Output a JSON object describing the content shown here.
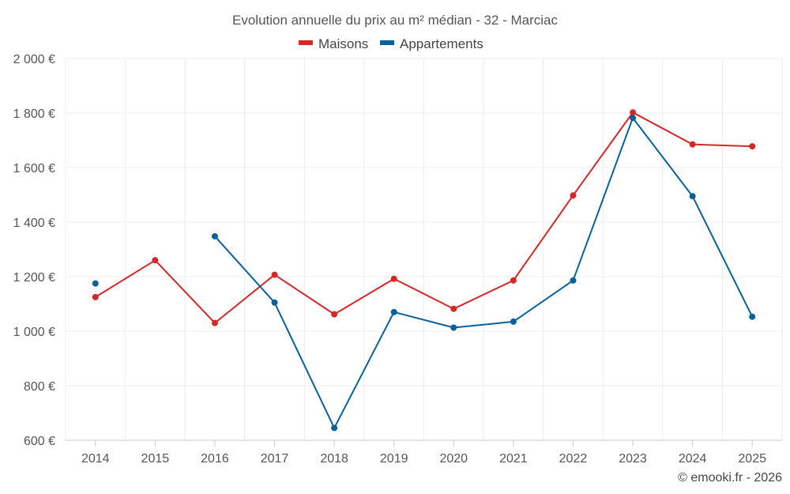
{
  "chart_data": {
    "type": "line",
    "title": "Evolution annuelle du prix au m² médian - 32 - Marciac",
    "categories": [
      "2014",
      "2015",
      "2016",
      "2017",
      "2018",
      "2019",
      "2020",
      "2021",
      "2022",
      "2023",
      "2024",
      "2025"
    ],
    "ylim": [
      600,
      2000
    ],
    "yticks": [
      600,
      800,
      1000,
      1200,
      1400,
      1600,
      1800,
      2000
    ],
    "ytick_labels": [
      "600 €",
      "800 €",
      "1 000 €",
      "1 200 €",
      "1 400 €",
      "1 600 €",
      "1 800 €",
      "2 000 €"
    ],
    "xlabel": "",
    "ylabel": "",
    "grid": true,
    "legend_position": "top-center",
    "series": [
      {
        "name": "Maisons",
        "color": "#d62728",
        "values": [
          1125,
          1260,
          1030,
          1207,
          1062,
          1192,
          1082,
          1186,
          1498,
          1802,
          1685,
          1678
        ]
      },
      {
        "name": "Appartements",
        "color": "#08619a",
        "values": [
          1175,
          null,
          1348,
          1105,
          645,
          1070,
          1013,
          1035,
          1186,
          1782,
          1495,
          1053
        ]
      }
    ]
  },
  "footer": {
    "credit": "© emooki.fr - 2026"
  }
}
